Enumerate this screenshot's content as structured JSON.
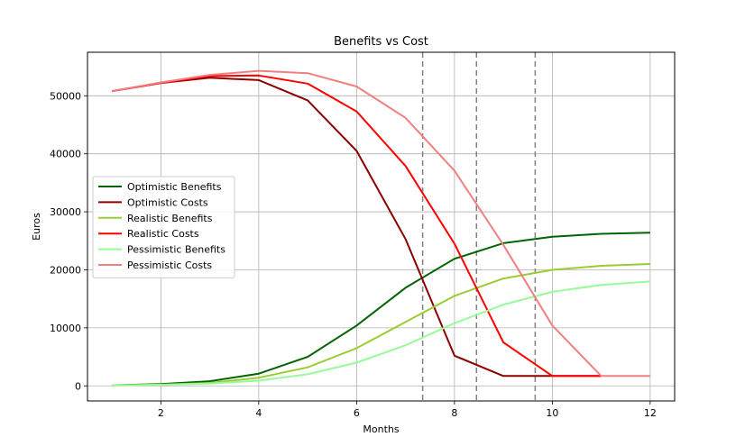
{
  "chart_data": {
    "type": "line",
    "title": "Benefits vs Cost",
    "xlabel": "Months",
    "ylabel": "Euros",
    "xlim": [
      0.5,
      12.5
    ],
    "ylim": [
      -2600,
      57500
    ],
    "xticks": [
      2,
      4,
      6,
      8,
      10,
      12
    ],
    "yticks": [
      0,
      10000,
      20000,
      30000,
      40000,
      50000
    ],
    "grid": true,
    "legend_position": "center-left",
    "x": [
      1,
      2,
      3,
      4,
      5,
      6,
      7,
      8,
      9,
      10,
      11,
      12
    ],
    "series": [
      {
        "name": "Optimistic Benefits",
        "color": "#006400",
        "values": [
          100,
          300,
          800,
          2100,
          5000,
          10400,
          16900,
          21900,
          24600,
          25700,
          26200,
          26400
        ]
      },
      {
        "name": "Optimistic Costs",
        "color": "#8b0000",
        "values": [
          50800,
          52200,
          53100,
          52700,
          49200,
          40500,
          25300,
          5200,
          1700,
          1700,
          1700,
          null
        ]
      },
      {
        "name": "Realistic Benefits",
        "color": "#9acd32",
        "values": [
          100,
          200,
          500,
          1400,
          3200,
          6500,
          11000,
          15500,
          18500,
          20000,
          20700,
          21000
        ]
      },
      {
        "name": "Realistic Costs",
        "color": "#ff0000",
        "values": [
          50800,
          52200,
          53400,
          53500,
          52100,
          47300,
          37900,
          24500,
          7500,
          1700,
          1700,
          null
        ]
      },
      {
        "name": "Pessimistic Benefits",
        "color": "#98fb98",
        "values": [
          100,
          200,
          400,
          900,
          2000,
          4000,
          7000,
          10800,
          14000,
          16200,
          17400,
          18000
        ]
      },
      {
        "name": "Pessimistic Costs",
        "color": "#f08080",
        "values": [
          50800,
          52300,
          53600,
          54300,
          53900,
          51600,
          46200,
          37100,
          24300,
          10400,
          1700,
          1700
        ]
      }
    ],
    "vlines": [
      7.35,
      8.45,
      9.65
    ],
    "vline_color": "#808080"
  }
}
